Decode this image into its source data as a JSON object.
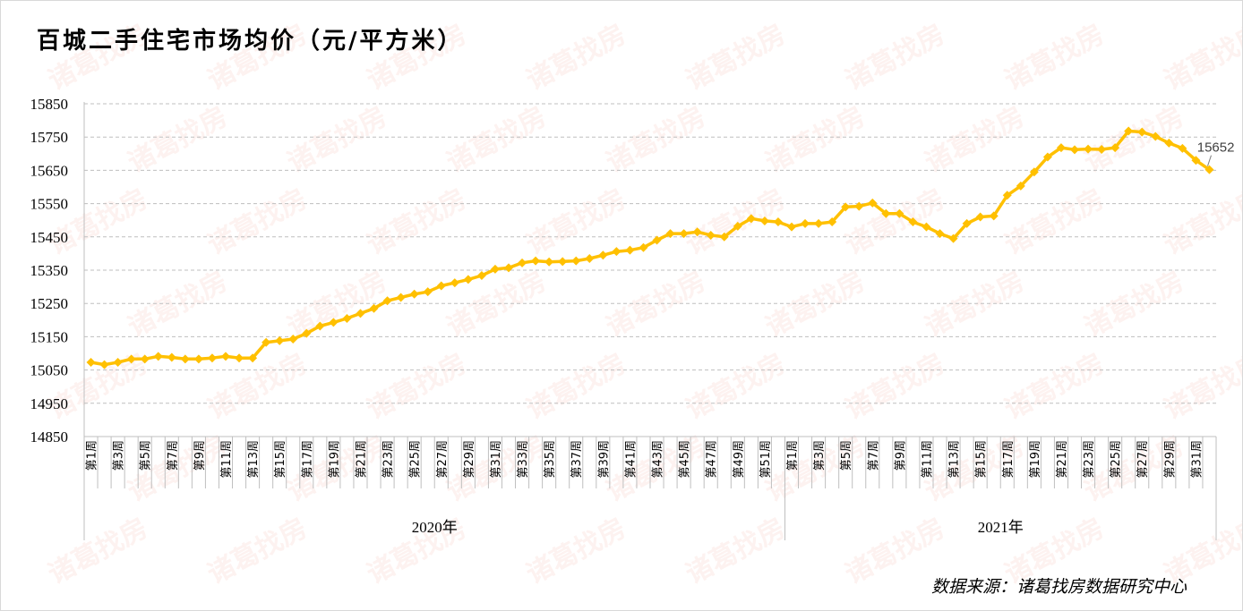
{
  "chart_data": {
    "type": "line",
    "title": "百城二手住宅市场均价（元/平方米）",
    "ylim": [
      14850,
      15850
    ],
    "yticks": [
      14850,
      14950,
      15050,
      15150,
      15250,
      15350,
      15450,
      15550,
      15650,
      15750,
      15850
    ],
    "groups": [
      {
        "label": "2020年",
        "count": 52
      },
      {
        "label": "2021年",
        "count": 32
      }
    ],
    "series": [
      {
        "color": "#FFC000",
        "values": [
          15073,
          15066,
          15073,
          15083,
          15083,
          15091,
          15088,
          15083,
          15083,
          15086,
          15091,
          15086,
          15086,
          15133,
          15138,
          15143,
          15160,
          15182,
          15193,
          15205,
          15220,
          15235,
          15258,
          15268,
          15278,
          15285,
          15303,
          15312,
          15322,
          15334,
          15353,
          15357,
          15372,
          15378,
          15375,
          15376,
          15378,
          15385,
          15395,
          15406,
          15410,
          15418,
          15440,
          15460,
          15460,
          15465,
          15455,
          15450,
          15482,
          15505,
          15498,
          15495,
          15480,
          15490,
          15490,
          15495,
          15540,
          15542,
          15552,
          15520,
          15520,
          15495,
          15480,
          15460,
          15445,
          15490,
          15510,
          15513,
          15575,
          15603,
          15645,
          15690,
          15718,
          15712,
          15714,
          15713,
          15718,
          15768,
          15765,
          15752,
          15732,
          15716,
          15680,
          15652
        ]
      }
    ],
    "annotation": {
      "text": "15652"
    }
  },
  "footer": {
    "source": "数据来源：诸葛找房数据研究中心"
  },
  "watermark": "诸葛找房"
}
